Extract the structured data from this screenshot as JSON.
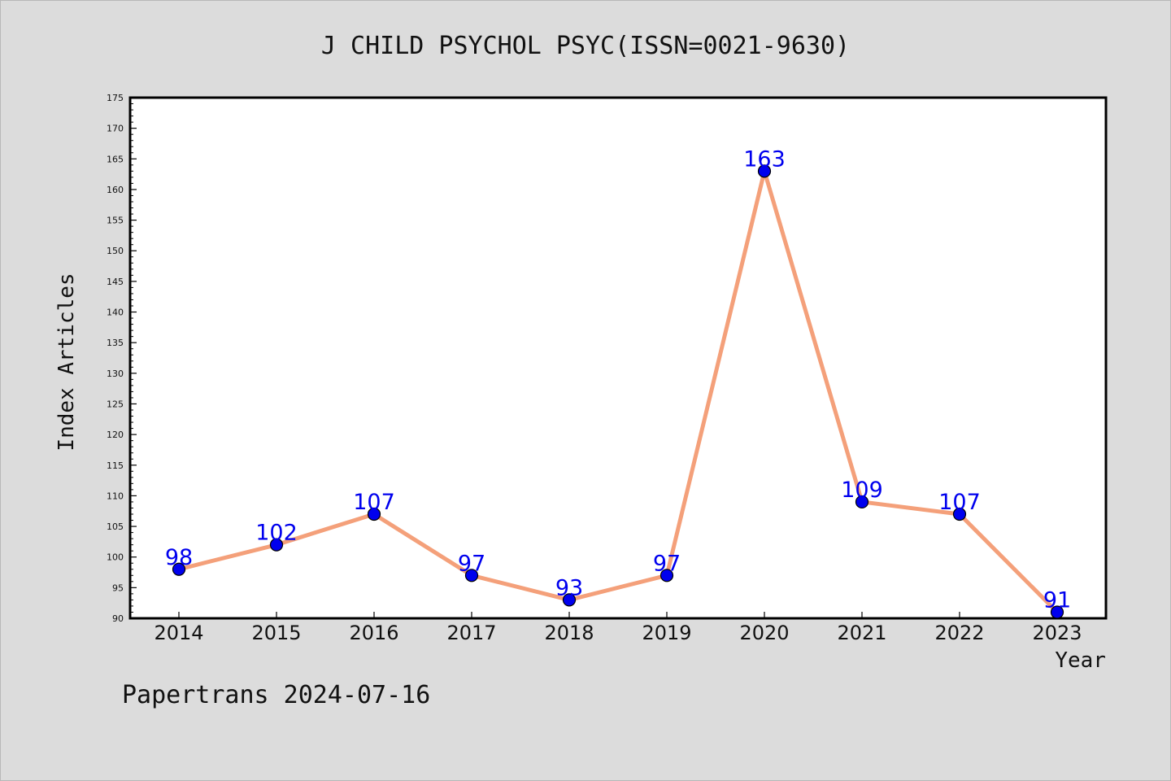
{
  "chart_data": {
    "type": "line",
    "title": "J CHILD PSYCHOL PSYC(ISSN=0021-9630)",
    "xlabel": "Year",
    "ylabel": "Index Articles",
    "categories": [
      "2014",
      "2015",
      "2016",
      "2017",
      "2018",
      "2019",
      "2020",
      "2021",
      "2022",
      "2023"
    ],
    "values": [
      98,
      102,
      107,
      97,
      93,
      97,
      163,
      109,
      107,
      91
    ],
    "ylim": [
      90,
      175
    ],
    "ytick_step": 5,
    "grid": false,
    "legend": "none",
    "colors": {
      "line": "#f4a07a",
      "marker": "#0000ee",
      "data_label": "#0000ee",
      "background": "#dcdcdc",
      "plot_background": "#ffffff"
    }
  },
  "footer": {
    "credit": "Papertrans 2024-07-16"
  }
}
